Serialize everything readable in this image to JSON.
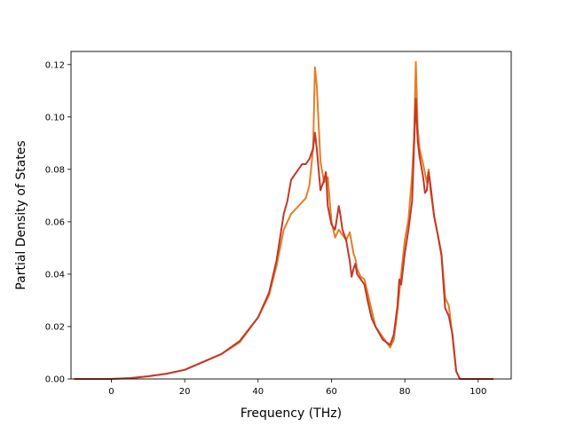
{
  "chart_data": {
    "type": "line",
    "title": "",
    "xlabel": "Frequency (THz)",
    "ylabel": "Partial Density of States",
    "xlim": [
      -11,
      109
    ],
    "ylim": [
      0,
      0.125
    ],
    "xticks": [
      0,
      20,
      40,
      60,
      80,
      100
    ],
    "xtick_labels": [
      "0",
      "20",
      "40",
      "60",
      "80",
      "100"
    ],
    "yticks": [
      0.0,
      0.02,
      0.04,
      0.06,
      0.08,
      0.1,
      0.12
    ],
    "ytick_labels": [
      "0.00",
      "0.02",
      "0.04",
      "0.06",
      "0.08",
      "0.10",
      "0.12"
    ],
    "grid": false,
    "legend": "none",
    "series": [
      {
        "color": "#e67e22",
        "x": [
          -10,
          0,
          5,
          10,
          15,
          20,
          25,
          30,
          35,
          40,
          43,
          45,
          47,
          49,
          51,
          53,
          54,
          55,
          55.5,
          56,
          57,
          58,
          59,
          60,
          61,
          62,
          63,
          64,
          65,
          66,
          66.5,
          67,
          68,
          69,
          70,
          71,
          72,
          74,
          76,
          77,
          78,
          79,
          80,
          81,
          82,
          82.5,
          83,
          83.5,
          84,
          85,
          86,
          86.5,
          87,
          88,
          89,
          90,
          91,
          92,
          93,
          94,
          95,
          100,
          104
        ],
        "y": [
          0,
          0,
          0.0003,
          0.001,
          0.002,
          0.0035,
          0.0065,
          0.0095,
          0.014,
          0.0235,
          0.032,
          0.043,
          0.057,
          0.063,
          0.066,
          0.069,
          0.074,
          0.088,
          0.119,
          0.112,
          0.083,
          0.075,
          0.077,
          0.06,
          0.054,
          0.057,
          0.055,
          0.053,
          0.056,
          0.048,
          0.046,
          0.042,
          0.039,
          0.038,
          0.032,
          0.026,
          0.02,
          0.016,
          0.012,
          0.015,
          0.026,
          0.04,
          0.053,
          0.061,
          0.078,
          0.092,
          0.121,
          0.096,
          0.088,
          0.082,
          0.075,
          0.08,
          0.072,
          0.062,
          0.055,
          0.048,
          0.031,
          0.028,
          0.016,
          0.003,
          0,
          0,
          0
        ]
      },
      {
        "color": "#c0392b",
        "x": [
          -10,
          0,
          5,
          10,
          15,
          20,
          25,
          30,
          35,
          40,
          43,
          45,
          47,
          48,
          49,
          50,
          51,
          52,
          53,
          54,
          55,
          55.5,
          56,
          57,
          58,
          58.5,
          59,
          60,
          61,
          62,
          62.5,
          63,
          64,
          65,
          65.5,
          66,
          66.5,
          67,
          68,
          69,
          70,
          71,
          72,
          74,
          76,
          77,
          78,
          78.5,
          79,
          80,
          81,
          82,
          82.5,
          83,
          83.5,
          84,
          85,
          85.5,
          86,
          86.5,
          87,
          88,
          89,
          90,
          91,
          92,
          93,
          94,
          95,
          100,
          104
        ],
        "y": [
          0,
          0,
          0.0003,
          0.001,
          0.002,
          0.0035,
          0.0065,
          0.0095,
          0.0145,
          0.0235,
          0.033,
          0.045,
          0.063,
          0.068,
          0.076,
          0.078,
          0.08,
          0.082,
          0.082,
          0.084,
          0.088,
          0.094,
          0.088,
          0.072,
          0.076,
          0.079,
          0.066,
          0.059,
          0.057,
          0.066,
          0.062,
          0.057,
          0.053,
          0.045,
          0.039,
          0.042,
          0.044,
          0.04,
          0.038,
          0.036,
          0.029,
          0.023,
          0.02,
          0.015,
          0.013,
          0.017,
          0.028,
          0.038,
          0.036,
          0.048,
          0.057,
          0.068,
          0.088,
          0.107,
          0.091,
          0.085,
          0.077,
          0.071,
          0.072,
          0.079,
          0.074,
          0.062,
          0.055,
          0.047,
          0.027,
          0.024,
          0.017,
          0.003,
          0,
          0,
          0
        ]
      }
    ]
  }
}
